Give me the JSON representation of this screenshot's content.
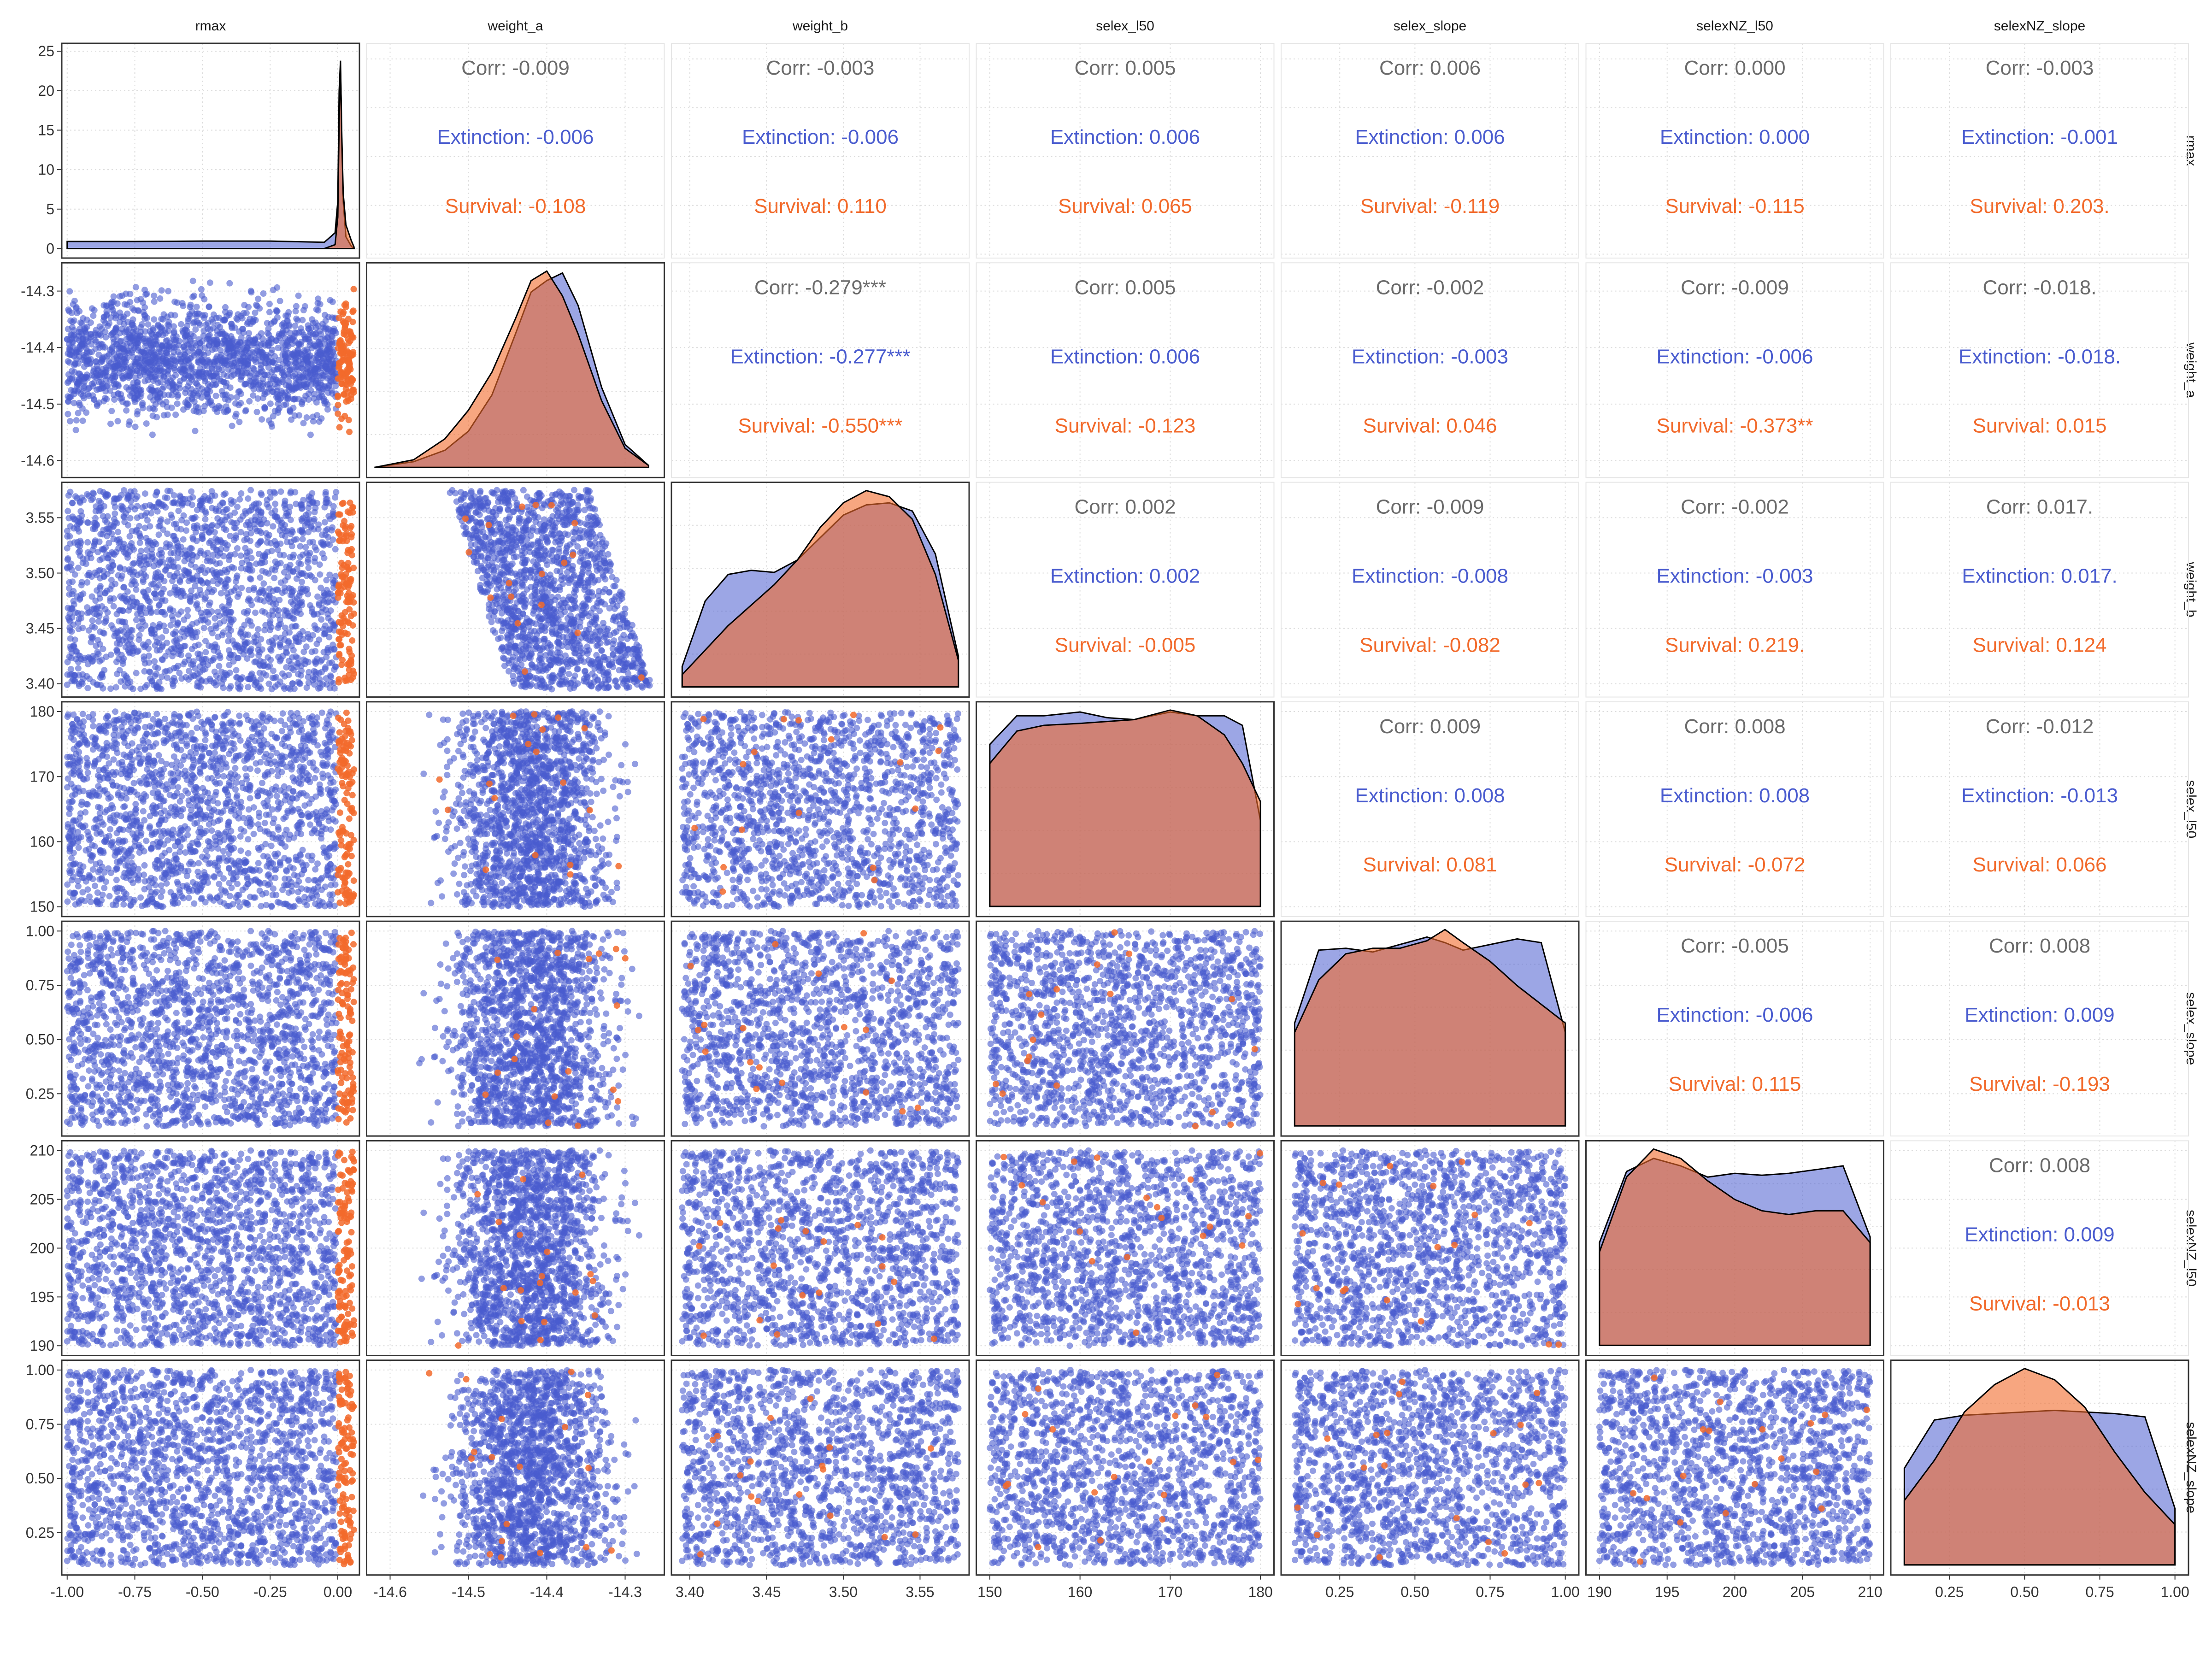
{
  "chart_data": {
    "type": "scatter-matrix",
    "variables": [
      "rmax",
      "weight_a",
      "weight_b",
      "selex_l50",
      "selex_slope",
      "selexNZ_l50",
      "selexNZ_slope"
    ],
    "groups": [
      {
        "name": "Extinction",
        "color": "#4a5ccf"
      },
      {
        "name": "Survival",
        "color": "#f26a2b"
      }
    ],
    "correlation_text_color": "#6b6b6b",
    "axes": [
      {
        "variable": "rmax",
        "range": [
          -1.02,
          0.08
        ],
        "ticks": [
          "-1.00",
          "-0.75",
          "-0.50",
          "-0.25",
          "0.00"
        ],
        "tick_values": [
          -1.0,
          -0.75,
          -0.5,
          -0.25,
          0.0
        ]
      },
      {
        "variable": "weight_a",
        "range": [
          -14.63,
          -14.25
        ],
        "ticks": [
          "-14.6",
          "-14.5",
          "-14.4",
          "-14.3"
        ],
        "tick_values": [
          -14.6,
          -14.5,
          -14.4,
          -14.3
        ]
      },
      {
        "variable": "weight_b",
        "range": [
          3.388,
          3.582
        ],
        "ticks": [
          "3.40",
          "3.45",
          "3.50",
          "3.55"
        ],
        "tick_values": [
          3.4,
          3.45,
          3.5,
          3.55
        ]
      },
      {
        "variable": "selex_l50",
        "range": [
          148.5,
          181.5
        ],
        "ticks": [
          "150",
          "160",
          "170",
          "180"
        ],
        "tick_values": [
          150,
          160,
          170,
          180
        ]
      },
      {
        "variable": "selex_slope",
        "range": [
          0.055,
          1.045
        ],
        "ticks": [
          "0.25",
          "0.50",
          "0.75",
          "1.00"
        ],
        "tick_values": [
          0.25,
          0.5,
          0.75,
          1.0
        ]
      },
      {
        "variable": "selexNZ_l50",
        "range": [
          189.0,
          211.0
        ],
        "ticks": [
          "190",
          "195",
          "200",
          "205",
          "210"
        ],
        "tick_values": [
          190,
          195,
          200,
          205,
          210
        ]
      },
      {
        "variable": "selexNZ_slope",
        "range": [
          0.055,
          1.045
        ],
        "ticks": [
          "0.25",
          "0.50",
          "0.75",
          "1.00"
        ],
        "tick_values": [
          0.25,
          0.5,
          0.75,
          1.0
        ]
      }
    ],
    "rmax_density_axis": {
      "range": [
        -1.2,
        26.0
      ],
      "ticks": [
        "0",
        "5",
        "10",
        "15",
        "20",
        "25"
      ],
      "tick_values": [
        0,
        5,
        10,
        15,
        20,
        25
      ]
    },
    "group_ranges": {
      "Extinction": {
        "rmax": [
          -1.0,
          -0.005
        ],
        "weight_a": [
          -14.59,
          -14.28
        ],
        "weight_b": [
          3.395,
          3.575
        ],
        "selex_l50": [
          150,
          180
        ],
        "selex_slope": [
          0.1,
          1.0
        ],
        "selexNZ_l50": [
          190,
          210
        ],
        "selexNZ_slope": [
          0.1,
          1.0
        ]
      },
      "Survival": {
        "rmax": [
          0.0,
          0.06
        ],
        "weight_a": [
          -14.55,
          -14.33
        ],
        "weight_b": [
          3.4,
          3.565
        ],
        "selex_l50": [
          150,
          180
        ],
        "selex_slope": [
          0.1,
          1.0
        ],
        "selexNZ_l50": [
          190,
          210
        ],
        "selexNZ_slope": [
          0.1,
          1.0
        ]
      }
    },
    "density_curves": [
      {
        "variable": "rmax",
        "x": [
          -1.0,
          -0.75,
          -0.5,
          -0.25,
          -0.05,
          -0.01,
          0.0,
          0.005,
          0.01,
          0.015,
          0.02,
          0.03,
          0.05,
          0.06
        ],
        "Extinction": [
          0.9,
          0.9,
          0.95,
          0.95,
          0.8,
          2.0,
          6.0,
          20.0,
          23.8,
          13.0,
          6.0,
          1.5,
          0.3,
          0.0
        ],
        "Survival": [
          0,
          0,
          0,
          0,
          0.0,
          0.5,
          4.0,
          16.0,
          23.0,
          14.0,
          7.0,
          3.0,
          1.0,
          0.2
        ]
      },
      {
        "variable": "weight_a",
        "x": [
          -14.62,
          -14.57,
          -14.53,
          -14.5,
          -14.47,
          -14.44,
          -14.42,
          -14.4,
          -14.38,
          -14.36,
          -14.33,
          -14.3,
          -14.27
        ],
        "Extinction": [
          0.0,
          0.3,
          0.9,
          1.9,
          3.8,
          7.0,
          9.2,
          9.8,
          10.2,
          8.5,
          4.2,
          1.2,
          0.1
        ],
        "Survival": [
          0.0,
          0.4,
          1.5,
          3.0,
          5.0,
          7.8,
          9.8,
          10.3,
          9.0,
          7.0,
          3.5,
          1.0,
          0.1
        ]
      },
      {
        "variable": "weight_b",
        "x": [
          3.395,
          3.41,
          3.425,
          3.44,
          3.455,
          3.47,
          3.485,
          3.5,
          3.515,
          3.53,
          3.545,
          3.56,
          3.575
        ],
        "Extinction": [
          1.0,
          4.2,
          5.5,
          5.7,
          5.6,
          6.2,
          7.3,
          8.4,
          8.9,
          9.0,
          8.6,
          6.5,
          1.5
        ],
        "Survival": [
          0.6,
          1.8,
          3.0,
          4.0,
          5.0,
          6.2,
          7.8,
          9.0,
          9.6,
          9.3,
          8.2,
          5.5,
          1.3
        ]
      },
      {
        "variable": "selex_l50",
        "x": [
          150,
          153,
          156,
          160,
          163,
          166,
          170,
          173,
          176,
          178,
          180
        ],
        "Extinction": [
          0.85,
          1.0,
          1.0,
          1.02,
          0.99,
          0.98,
          1.02,
          1.0,
          1.0,
          0.95,
          0.45
        ],
        "Survival": [
          0.75,
          0.92,
          0.95,
          0.96,
          0.97,
          0.98,
          1.03,
          1.0,
          0.9,
          0.75,
          0.55
        ]
      },
      {
        "variable": "selex_slope",
        "x": [
          0.1,
          0.18,
          0.27,
          0.36,
          0.45,
          0.54,
          0.6,
          0.66,
          0.75,
          0.84,
          0.92,
          1.0
        ],
        "Extinction": [
          0.55,
          0.94,
          0.95,
          0.93,
          0.97,
          1.01,
          0.98,
          0.94,
          0.97,
          1.0,
          0.98,
          0.5
        ],
        "Survival": [
          0.5,
          0.78,
          0.92,
          0.95,
          0.95,
          0.99,
          1.05,
          0.98,
          0.88,
          0.75,
          0.65,
          0.55
        ]
      },
      {
        "variable": "selexNZ_l50",
        "x": [
          190,
          192,
          194,
          196,
          198,
          200,
          202,
          204,
          206,
          208,
          210
        ],
        "Extinction": [
          0.55,
          0.93,
          1.0,
          0.96,
          0.9,
          0.92,
          0.91,
          0.92,
          0.94,
          0.96,
          0.58
        ],
        "Survival": [
          0.5,
          0.9,
          1.05,
          1.0,
          0.88,
          0.78,
          0.72,
          0.7,
          0.72,
          0.72,
          0.55
        ]
      },
      {
        "variable": "selexNZ_slope",
        "x": [
          0.1,
          0.2,
          0.3,
          0.4,
          0.5,
          0.6,
          0.7,
          0.8,
          0.9,
          1.0
        ],
        "Extinction": [
          0.6,
          0.9,
          0.93,
          0.94,
          0.95,
          0.96,
          0.95,
          0.94,
          0.92,
          0.35
        ],
        "Survival": [
          0.4,
          0.65,
          0.95,
          1.12,
          1.22,
          1.15,
          0.98,
          0.7,
          0.45,
          0.25
        ]
      }
    ],
    "scatter_points": {
      "Extinction": {
        "count": 3000,
        "distribution": "uniform within group_ranges"
      },
      "Survival": {
        "count": 150,
        "distribution": "uniform within group_ranges"
      }
    },
    "correlations": [
      {
        "row": "rmax",
        "col": "weight_a",
        "corr": "Corr: -0.009",
        "extinction": "Extinction: -0.006",
        "survival": "Survival: -0.108"
      },
      {
        "row": "rmax",
        "col": "weight_b",
        "corr": "Corr: -0.003",
        "extinction": "Extinction: -0.006",
        "survival": "Survival: 0.110"
      },
      {
        "row": "rmax",
        "col": "selex_l50",
        "corr": "Corr: 0.005",
        "extinction": "Extinction: 0.006",
        "survival": "Survival: 0.065"
      },
      {
        "row": "rmax",
        "col": "selex_slope",
        "corr": "Corr: 0.006",
        "extinction": "Extinction: 0.006",
        "survival": "Survival: -0.119"
      },
      {
        "row": "rmax",
        "col": "selexNZ_l50",
        "corr": "Corr: 0.000",
        "extinction": "Extinction: 0.000",
        "survival": "Survival: -0.115"
      },
      {
        "row": "rmax",
        "col": "selexNZ_slope",
        "corr": "Corr: -0.003",
        "extinction": "Extinction: -0.001",
        "survival": "Survival: 0.203."
      },
      {
        "row": "weight_a",
        "col": "weight_b",
        "corr": "Corr: -0.279***",
        "extinction": "Extinction: -0.277***",
        "survival": "Survival: -0.550***"
      },
      {
        "row": "weight_a",
        "col": "selex_l50",
        "corr": "Corr: 0.005",
        "extinction": "Extinction: 0.006",
        "survival": "Survival: -0.123"
      },
      {
        "row": "weight_a",
        "col": "selex_slope",
        "corr": "Corr: -0.002",
        "extinction": "Extinction: -0.003",
        "survival": "Survival: 0.046"
      },
      {
        "row": "weight_a",
        "col": "selexNZ_l50",
        "corr": "Corr: -0.009",
        "extinction": "Extinction: -0.006",
        "survival": "Survival: -0.373**"
      },
      {
        "row": "weight_a",
        "col": "selexNZ_slope",
        "corr": "Corr: -0.018.",
        "extinction": "Extinction: -0.018.",
        "survival": "Survival: 0.015"
      },
      {
        "row": "weight_b",
        "col": "selex_l50",
        "corr": "Corr: 0.002",
        "extinction": "Extinction: 0.002",
        "survival": "Survival: -0.005"
      },
      {
        "row": "weight_b",
        "col": "selex_slope",
        "corr": "Corr: -0.009",
        "extinction": "Extinction: -0.008",
        "survival": "Survival: -0.082"
      },
      {
        "row": "weight_b",
        "col": "selexNZ_l50",
        "corr": "Corr: -0.002",
        "extinction": "Extinction: -0.003",
        "survival": "Survival: 0.219."
      },
      {
        "row": "weight_b",
        "col": "selexNZ_slope",
        "corr": "Corr: 0.017.",
        "extinction": "Extinction: 0.017.",
        "survival": "Survival: 0.124"
      },
      {
        "row": "selex_l50",
        "col": "selex_slope",
        "corr": "Corr: 0.009",
        "extinction": "Extinction: 0.008",
        "survival": "Survival: 0.081"
      },
      {
        "row": "selex_l50",
        "col": "selexNZ_l50",
        "corr": "Corr: 0.008",
        "extinction": "Extinction: 0.008",
        "survival": "Survival: -0.072"
      },
      {
        "row": "selex_l50",
        "col": "selexNZ_slope",
        "corr": "Corr: -0.012",
        "extinction": "Extinction: -0.013",
        "survival": "Survival: 0.066"
      },
      {
        "row": "selex_slope",
        "col": "selexNZ_l50",
        "corr": "Corr: -0.005",
        "extinction": "Extinction: -0.006",
        "survival": "Survival: 0.115"
      },
      {
        "row": "selex_slope",
        "col": "selexNZ_slope",
        "corr": "Corr: 0.008",
        "extinction": "Extinction: 0.009",
        "survival": "Survival: -0.193"
      },
      {
        "row": "selexNZ_l50",
        "col": "selexNZ_slope",
        "corr": "Corr: 0.008",
        "extinction": "Extinction: 0.009",
        "survival": "Survival: -0.013"
      }
    ],
    "grid": true,
    "legend": "none"
  }
}
